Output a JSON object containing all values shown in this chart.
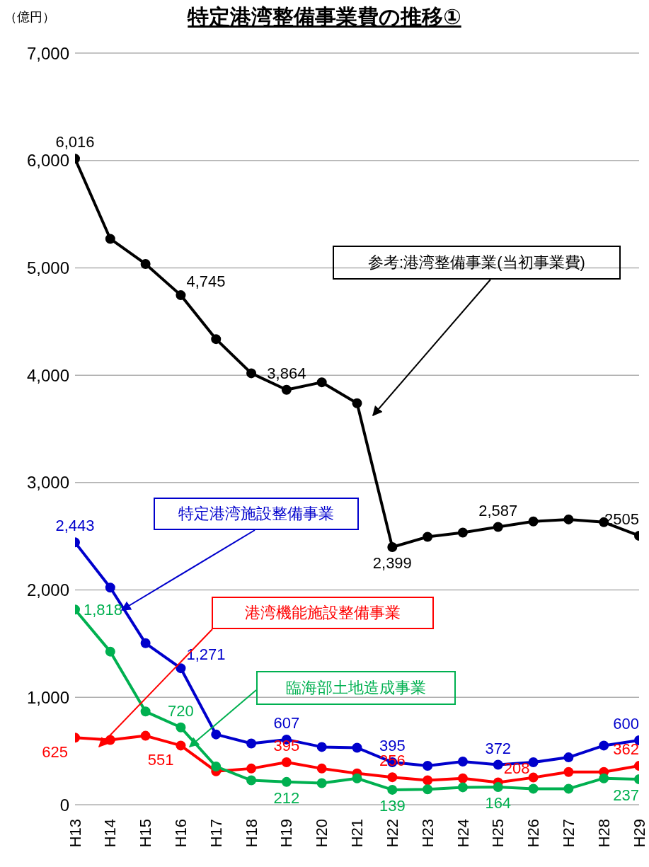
{
  "chart_data": {
    "type": "line",
    "title": "特定港湾整備事業費の推移①",
    "ylabel": "（億円）",
    "categories": [
      "H13",
      "H14",
      "H15",
      "H16",
      "H17",
      "H18",
      "H19",
      "H20",
      "H21",
      "H22",
      "H23",
      "H24",
      "H25",
      "H26",
      "H27",
      "H28",
      "H29"
    ],
    "series": [
      {
        "name": "参考:港湾整備事業(当初事業費)",
        "color": "#000000",
        "values": [
          6016,
          5270,
          5036,
          4745,
          4336,
          4018,
          3864,
          3934,
          3739,
          2399,
          2495,
          2534,
          2587,
          2638,
          2657,
          2631,
          2505
        ],
        "value_labels": [
          "6,016",
          null,
          null,
          "4,745",
          null,
          null,
          "3,864",
          null,
          null,
          "2,399",
          null,
          null,
          "2,587",
          null,
          null,
          null,
          "2505"
        ]
      },
      {
        "name": "特定港湾施設整備事業",
        "color": "#0000cc",
        "values": [
          2443,
          2022,
          1504,
          1271,
          655,
          570,
          607,
          538,
          531,
          395,
          363,
          402,
          372,
          395,
          441,
          551,
          600
        ],
        "value_labels": [
          "2,443",
          null,
          null,
          "1,271",
          null,
          null,
          "607",
          null,
          null,
          "395",
          null,
          null,
          "372",
          null,
          null,
          null,
          "600"
        ]
      },
      {
        "name": "港湾機能施設整備事業",
        "color": "#ff0000",
        "values": [
          625,
          603,
          642,
          551,
          311,
          337,
          395,
          337,
          292,
          256,
          227,
          246,
          208,
          253,
          305,
          305,
          362
        ],
        "value_labels": [
          "625",
          null,
          null,
          "551",
          null,
          null,
          "395",
          null,
          null,
          "256",
          null,
          null,
          "208",
          null,
          null,
          null,
          "362"
        ]
      },
      {
        "name": "臨海部土地造成事業",
        "color": "#00b050",
        "values": [
          1818,
          1426,
          868,
          720,
          356,
          227,
          212,
          201,
          246,
          139,
          143,
          162,
          164,
          149,
          149,
          246,
          237
        ],
        "value_labels": [
          "1,818",
          null,
          null,
          "720",
          null,
          null,
          "212",
          null,
          null,
          "139",
          null,
          null,
          "164",
          null,
          null,
          null,
          "237"
        ]
      }
    ],
    "ylim": [
      0,
      7000
    ],
    "yticks": [
      0,
      {
        "value": 1000,
        "label": "1,000"
      },
      {
        "value": 2000,
        "label": "2,000"
      },
      {
        "value": 3000,
        "label": "3,000"
      },
      {
        "value": 4000,
        "label": "4,000"
      },
      {
        "value": 5000,
        "label": "5,000"
      },
      {
        "value": 6000,
        "label": "6,000"
      },
      {
        "value": 7000,
        "label": "7,000"
      }
    ],
    "grid": "y",
    "legend": false,
    "marker": "circle",
    "line_style": "solid"
  }
}
